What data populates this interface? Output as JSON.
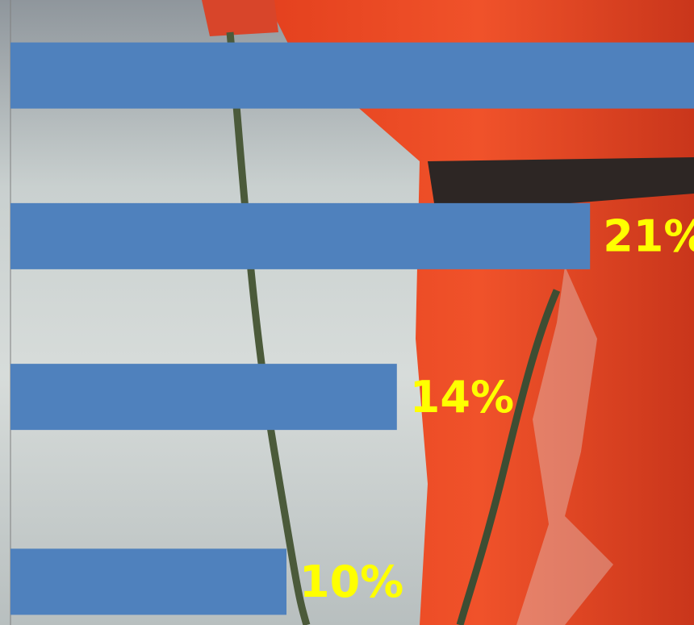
{
  "chart_data": {
    "type": "barh",
    "categories": [
      null,
      null,
      null,
      null
    ],
    "values": [
      26,
      21,
      14,
      10
    ],
    "value_labels": [
      null,
      "21%",
      "14%",
      "10%"
    ],
    "color": "#4f81bd",
    "label_color": "#ffff00",
    "xlim": [
      0,
      25
    ]
  }
}
